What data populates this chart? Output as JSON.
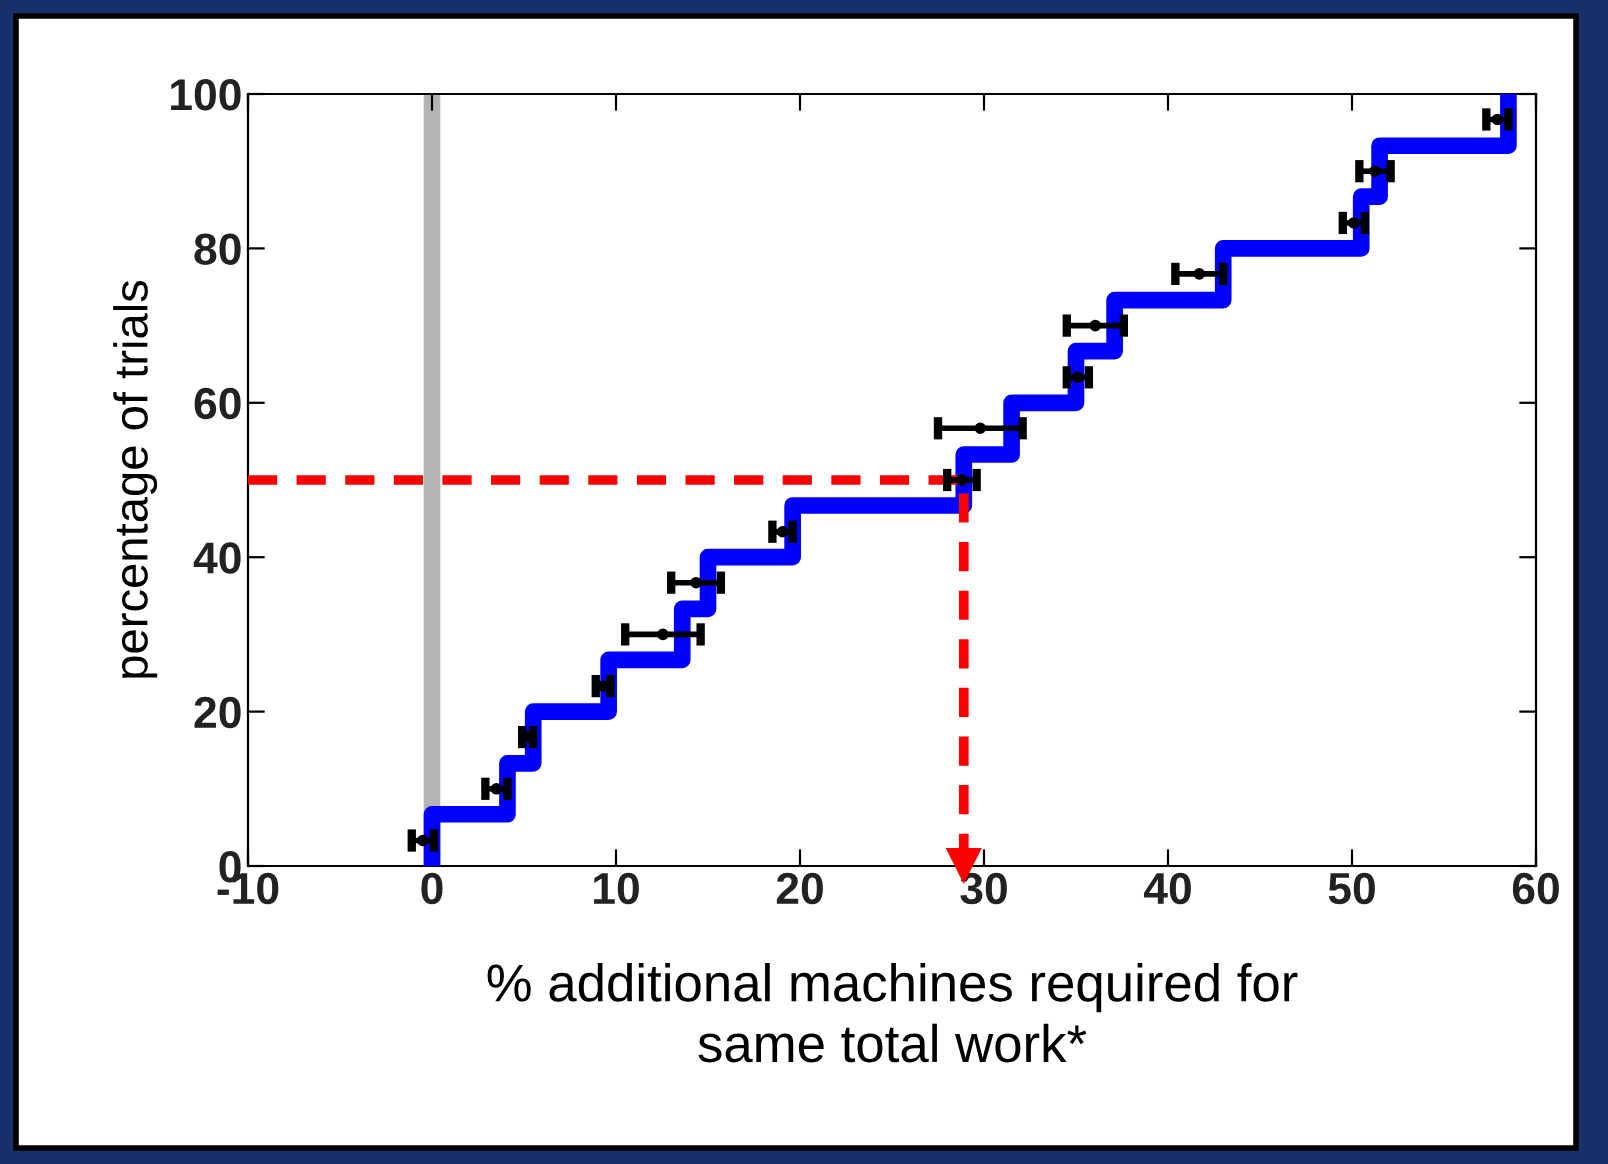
{
  "chart_data": {
    "type": "step",
    "xlabel": "% additional machines required for\nsame total work*",
    "ylabel": "percentage of trials",
    "xlim": [
      -10,
      60
    ],
    "xticks": [
      -10,
      0,
      10,
      20,
      30,
      40,
      50,
      60
    ],
    "ylim": [
      0,
      100
    ],
    "yticks": [
      0,
      20,
      40,
      60,
      80,
      100
    ],
    "grid": false,
    "series": [
      {
        "color": "#0000ff",
        "x": [
          0,
          0,
          4.1,
          5.5,
          9.6,
          13.6,
          15.0,
          19.6,
          28.9,
          31.5,
          35.0,
          37.1,
          43.0,
          50.5,
          51.5,
          58.5
        ],
        "values": [
          0,
          6.7,
          13.3,
          20,
          26.7,
          33.3,
          40,
          46.7,
          53.3,
          60,
          66.7,
          73.3,
          80,
          86.7,
          93.3,
          100
        ]
      },
      {
        "type": "scatter",
        "marker": "circle",
        "color": "#000000",
        "x": [
          -0.5,
          3.5,
          5.2,
          9.3,
          12.55,
          14.35,
          19.05,
          28.8,
          29.8,
          35.1,
          36.05,
          41.7,
          50.1,
          51.25,
          57.9
        ],
        "values": [
          3.3,
          10,
          16.7,
          23.3,
          30,
          36.7,
          43.3,
          50,
          56.7,
          63.3,
          70,
          76.7,
          83.3,
          90,
          96.7
        ],
        "xerrors": [
          [
            -1.1,
            0.1
          ],
          [
            2.9,
            4.1
          ],
          [
            4.9,
            5.5
          ],
          [
            8.9,
            9.7
          ],
          [
            10.5,
            14.6
          ],
          [
            13.0,
            15.7
          ],
          [
            18.5,
            19.6
          ],
          [
            28.0,
            29.6
          ],
          [
            27.5,
            32.1
          ],
          [
            34.5,
            35.7
          ],
          [
            34.5,
            37.6
          ],
          [
            40.4,
            43.0
          ],
          [
            49.5,
            50.7
          ],
          [
            50.4,
            52.1
          ],
          [
            57.3,
            58.5
          ]
        ]
      },
      {
        "type": "line",
        "color": "#ff0000",
        "line_style": "dashed",
        "x": [
          -10,
          28.9,
          28.9
        ],
        "values": [
          50,
          50,
          0
        ]
      }
    ],
    "ref_lines": [
      {
        "axis": "x",
        "value": 0,
        "color": "#b3b3b3"
      }
    ]
  }
}
